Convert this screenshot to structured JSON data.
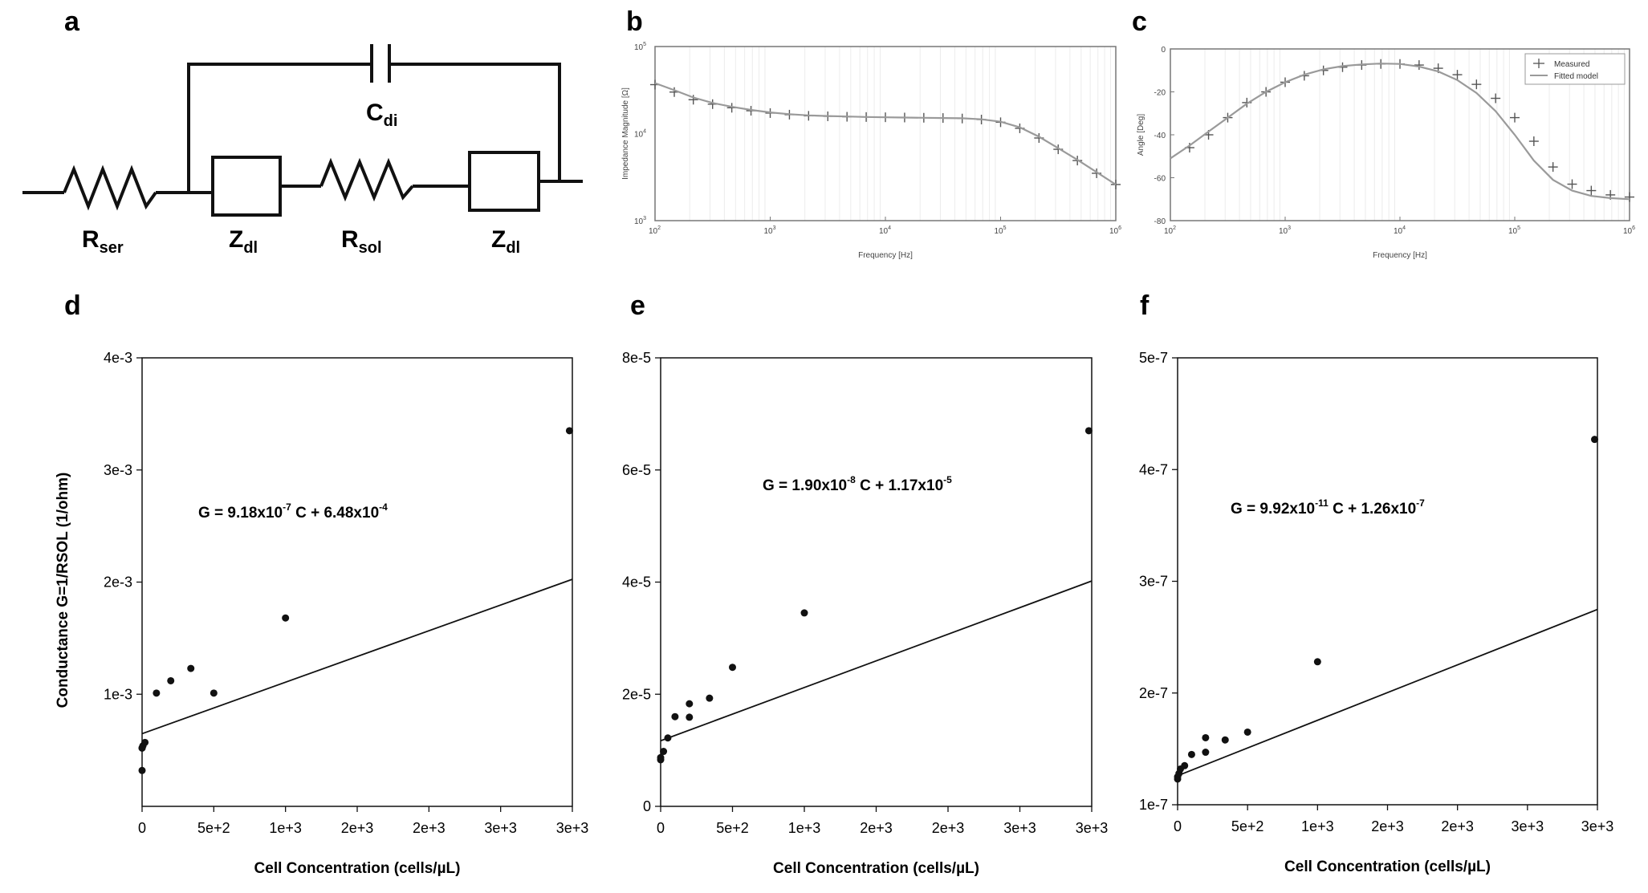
{
  "panel_labels": [
    "a",
    "b",
    "c",
    "d",
    "e",
    "f"
  ],
  "circuit": {
    "components": [
      {
        "base": "R",
        "sub": "ser"
      },
      {
        "base": "Z",
        "sub": "dl"
      },
      {
        "base": "R",
        "sub": "sol"
      },
      {
        "base": "Z",
        "sub": "dl"
      },
      {
        "base": "C",
        "sub": "di"
      }
    ]
  },
  "chart_data": [
    {
      "panel": "b",
      "type": "line",
      "scale": "log-log",
      "xlabel": "Frequency [Hz]",
      "ylabel": "Impedance Magnitude [Ω]",
      "xlim": [
        100,
        1000000
      ],
      "ylim": [
        1000,
        100000
      ],
      "x_ticks": [
        {
          "base": "10",
          "exp": "2"
        },
        {
          "base": "10",
          "exp": "3"
        },
        {
          "base": "10",
          "exp": "4"
        },
        {
          "base": "10",
          "exp": "5"
        },
        {
          "base": "10",
          "exp": "6"
        }
      ],
      "y_ticks": [
        {
          "base": "10",
          "exp": "3"
        },
        {
          "base": "10",
          "exp": "4"
        },
        {
          "base": "10",
          "exp": "5"
        }
      ],
      "series": [
        {
          "style": "plus-markers",
          "x": [
            100,
            147,
            215,
            316,
            464,
            681,
            1000,
            1468,
            2154,
            3162,
            4642,
            6813,
            10000,
            14678,
            21544,
            31623,
            46416,
            68129,
            100000,
            146780,
            215440,
            316230,
            464160,
            681290,
            1000000
          ],
          "y": [
            36500,
            30000,
            24500,
            21800,
            19800,
            18300,
            17200,
            16500,
            16000,
            15800,
            15600,
            15500,
            15400,
            15300,
            15200,
            15100,
            14900,
            14500,
            13500,
            11500,
            8900,
            6600,
            4900,
            3500,
            2600
          ]
        },
        {
          "style": "line",
          "x": [
            100,
            147,
            215,
            316,
            464,
            681,
            1000,
            1468,
            2154,
            3162,
            4642,
            6813,
            10000,
            14678,
            21544,
            31623,
            46416,
            68129,
            100000,
            146780,
            215440,
            316230,
            464160,
            681290,
            1000000
          ],
          "y": [
            38000,
            31500,
            26000,
            22500,
            20300,
            18700,
            17500,
            16700,
            16200,
            15900,
            15700,
            15500,
            15400,
            15300,
            15200,
            15100,
            15000,
            14600,
            13700,
            11800,
            9200,
            6800,
            5000,
            3600,
            2600
          ]
        }
      ]
    },
    {
      "panel": "c",
      "type": "line",
      "scale": "log-x",
      "xlabel": "Frequency [Hz]",
      "ylabel": "Angle [Deg]",
      "xlim": [
        100,
        1000000
      ],
      "ylim": [
        -80,
        0
      ],
      "x_ticks": [
        {
          "base": "10",
          "exp": "2"
        },
        {
          "base": "10",
          "exp": "3"
        },
        {
          "base": "10",
          "exp": "4"
        },
        {
          "base": "10",
          "exp": "5"
        },
        {
          "base": "10",
          "exp": "6"
        }
      ],
      "y_ticks": [
        "0",
        "-20",
        "-40",
        "-60",
        "-80"
      ],
      "legend": {
        "position": "top-right",
        "entries": [
          "Measured",
          "Fitted model"
        ]
      },
      "series": [
        {
          "name": "Measured",
          "style": "plus-markers",
          "x": [
            147,
            215,
            316,
            464,
            681,
            1000,
            1468,
            2154,
            3162,
            4642,
            6813,
            10000,
            14678,
            21544,
            31623,
            46416,
            68129,
            100000,
            146780,
            215440,
            316230,
            464160,
            681290,
            1000000
          ],
          "y": [
            -46,
            -40,
            -32,
            -25,
            -20,
            -15.5,
            -12.5,
            -10,
            -8.5,
            -7.5,
            -7,
            -7,
            -7.5,
            -9,
            -12,
            -16.5,
            -23,
            -32,
            -43,
            -55,
            -63,
            -66,
            -68,
            -69
          ]
        },
        {
          "name": "Fitted model",
          "style": "line",
          "x": [
            100,
            147,
            215,
            316,
            464,
            681,
            1000,
            1468,
            2154,
            3162,
            4642,
            6813,
            10000,
            14678,
            21544,
            31623,
            46416,
            68129,
            100000,
            146780,
            215440,
            316230,
            464160,
            681290,
            1000000
          ],
          "y": [
            -51,
            -45,
            -38.5,
            -32,
            -25.5,
            -20,
            -15.5,
            -12,
            -9.5,
            -8,
            -7.2,
            -6.8,
            -7,
            -8.2,
            -10.5,
            -14.5,
            -20.5,
            -29,
            -40,
            -52,
            -61,
            -66,
            -68.5,
            -69.5,
            -70
          ]
        }
      ]
    },
    {
      "panel": "d",
      "type": "scatter",
      "xlabel": "Cell Concentration (cells/µL)",
      "ylabel": "Conductance G=1/RSOL (1/ohm)",
      "xlim": [
        0,
        1500
      ],
      "ylim": [
        0,
        0.004
      ],
      "x_ticks": [
        "0",
        "5e+2",
        "1e+3",
        "2e+3",
        "2e+3",
        "3e+3",
        "3e+3"
      ],
      "y_ticks": [
        "1e-3",
        "2e-3",
        "3e-3",
        "4e-3"
      ],
      "equation": {
        "parts": [
          {
            "t": "G = 9.18x10"
          },
          {
            "t": "-7",
            "sup": true
          },
          {
            "t": " C + 6.48x10"
          },
          {
            "t": "-4",
            "sup": true
          }
        ]
      },
      "points": {
        "x": [
          0,
          0,
          0,
          3,
          10,
          50,
          100,
          170,
          250,
          500,
          1490
        ],
        "y": [
          0.00032,
          0.00052,
          0.00052,
          0.00054,
          0.00057,
          0.00101,
          0.00112,
          0.00123,
          0.00101,
          0.00168,
          0.00335
        ]
      },
      "fit_line": {
        "slope": 9.18e-07,
        "intercept": 0.000648
      }
    },
    {
      "panel": "e",
      "type": "scatter",
      "xlabel": "Cell Concentration (cells/µL)",
      "ylabel": "",
      "xlim": [
        0,
        1500
      ],
      "ylim": [
        0,
        8e-05
      ],
      "x_ticks": [
        "0",
        "5e+2",
        "1e+3",
        "2e+3",
        "2e+3",
        "3e+3",
        "3e+3"
      ],
      "y_ticks": [
        "0",
        "2e-5",
        "4e-5",
        "6e-5",
        "8e-5"
      ],
      "equation": {
        "parts": [
          {
            "t": "G = 1.90x10"
          },
          {
            "t": "-8",
            "sup": true
          },
          {
            "t": " C + 1.17x10"
          },
          {
            "t": "-5",
            "sup": true
          }
        ]
      },
      "points": {
        "x": [
          0,
          0,
          10,
          25,
          50,
          100,
          100,
          170,
          250,
          500,
          1490
        ],
        "y": [
          8.3e-06,
          8.7e-06,
          9.8e-06,
          1.22e-05,
          1.6e-05,
          1.59e-05,
          1.83e-05,
          1.93e-05,
          2.48e-05,
          3.45e-05,
          6.7e-05
        ]
      },
      "fit_line": {
        "slope": 1.9e-08,
        "intercept": 1.17e-05
      }
    },
    {
      "panel": "f",
      "type": "scatter",
      "xlabel": "Cell Concentration (cells/µL)",
      "ylabel": "",
      "xlim": [
        0,
        1500
      ],
      "ylim": [
        1e-07,
        5e-07
      ],
      "x_ticks": [
        "0",
        "5e+2",
        "1e+3",
        "2e+3",
        "2e+3",
        "3e+3",
        "3e+3"
      ],
      "y_ticks": [
        "1e-7",
        "2e-7",
        "3e-7",
        "4e-7",
        "5e-7"
      ],
      "equation": {
        "parts": [
          {
            "t": "G = 9.92x10"
          },
          {
            "t": "-11",
            "sup": true
          },
          {
            "t": " C + 1.26x10"
          },
          {
            "t": "-7",
            "sup": true
          }
        ]
      },
      "points": {
        "x": [
          0,
          0,
          5,
          10,
          25,
          50,
          100,
          100,
          170,
          250,
          500,
          1490
        ],
        "y": [
          1.23e-07,
          1.25e-07,
          1.28e-07,
          1.32e-07,
          1.35e-07,
          1.45e-07,
          1.47e-07,
          1.6e-07,
          1.58e-07,
          1.65e-07,
          2.28e-07,
          4.27e-07
        ]
      },
      "fit_line": {
        "slope": 9.92e-11,
        "intercept": 1.26e-07
      }
    }
  ]
}
